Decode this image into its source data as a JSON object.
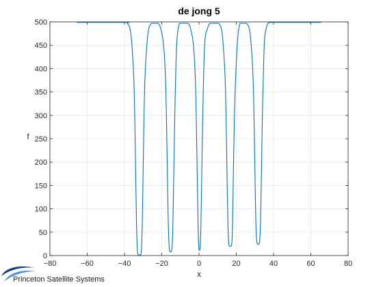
{
  "chart_data": {
    "type": "line",
    "title": "de jong 5",
    "xlabel": "x",
    "ylabel": "f",
    "xlim": [
      -80,
      80
    ],
    "ylim": [
      0,
      500
    ],
    "xticks": [
      -80,
      -60,
      -40,
      -20,
      0,
      20,
      40,
      60,
      80
    ],
    "yticks": [
      0,
      50,
      100,
      150,
      200,
      250,
      300,
      350,
      400,
      450,
      500
    ],
    "grid": true,
    "series": [
      {
        "color": "#0072BD",
        "x_range": [
          -65.536,
          65.536
        ],
        "x": [
          -65.5,
          -40,
          -38.5,
          -37,
          -36,
          -35,
          -34.5,
          -34,
          -33.5,
          -33,
          -32.5,
          -32,
          -31.5,
          -31,
          -30.5,
          -30,
          -29.5,
          -29,
          -28,
          -27,
          -25.5,
          -24,
          -22,
          -20.5,
          -19,
          -18,
          -17.5,
          -17,
          -16.5,
          -16,
          -15.5,
          -15,
          -14.5,
          -14,
          -13,
          -12,
          -10.5,
          -9,
          -6,
          -4.5,
          -3,
          -2,
          -1.5,
          -1,
          -0.5,
          0,
          0.5,
          1,
          1.5,
          2,
          3,
          4.5,
          6,
          9,
          10.5,
          12,
          13,
          14,
          14.5,
          15,
          15.5,
          16,
          16.5,
          17,
          17.5,
          18,
          19,
          20.5,
          22,
          24,
          25.5,
          27,
          28,
          29,
          29.5,
          30,
          30.5,
          31,
          31.5,
          32,
          32.5,
          33,
          33.5,
          34,
          35,
          36,
          37,
          38.5,
          40,
          65.5
        ],
        "y": [
          499,
          499,
          497,
          485,
          450,
          380,
          300,
          180,
          60,
          8,
          1,
          1,
          1,
          8,
          60,
          180,
          300,
          380,
          450,
          485,
          497,
          497,
          497,
          485,
          450,
          380,
          300,
          180,
          70,
          18,
          8,
          8,
          18,
          70,
          300,
          450,
          497,
          497,
          497,
          485,
          450,
          380,
          300,
          180,
          60,
          12,
          12,
          60,
          180,
          300,
          450,
          485,
          497,
          497,
          497,
          485,
          450,
          380,
          300,
          180,
          70,
          23,
          20,
          20,
          23,
          70,
          300,
          450,
          497,
          497,
          497,
          485,
          450,
          380,
          300,
          180,
          70,
          30,
          24,
          24,
          30,
          70,
          180,
          300,
          450,
          485,
          497,
          499,
          499,
          499
        ]
      }
    ]
  },
  "branding": {
    "company": "Princeton Satellite Systems",
    "logo_colors": [
      "#1b3f8b",
      "#4a90d9"
    ]
  }
}
